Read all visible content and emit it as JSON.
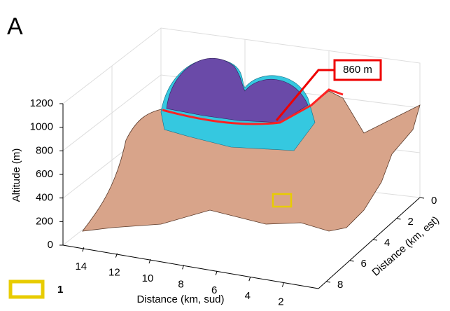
{
  "chart_data": {
    "type": "surface3d",
    "panel_label": "A",
    "annotation": "860 m",
    "legend_label": "1",
    "zlabel": "Altitude (m)",
    "xlabel": "Distance (km, sud)",
    "ylabel": "Distance (km, est)",
    "zlim": [
      0,
      1200
    ],
    "zticks": [
      0,
      200,
      400,
      600,
      800,
      1000,
      1200
    ],
    "xlim": [
      15,
      0
    ],
    "xticks": [
      14,
      12,
      10,
      8,
      6,
      4,
      2
    ],
    "ylim": [
      0,
      8
    ],
    "yticks": [
      0,
      2,
      4,
      6,
      8
    ],
    "surface_color": "#d8a48a"
  }
}
